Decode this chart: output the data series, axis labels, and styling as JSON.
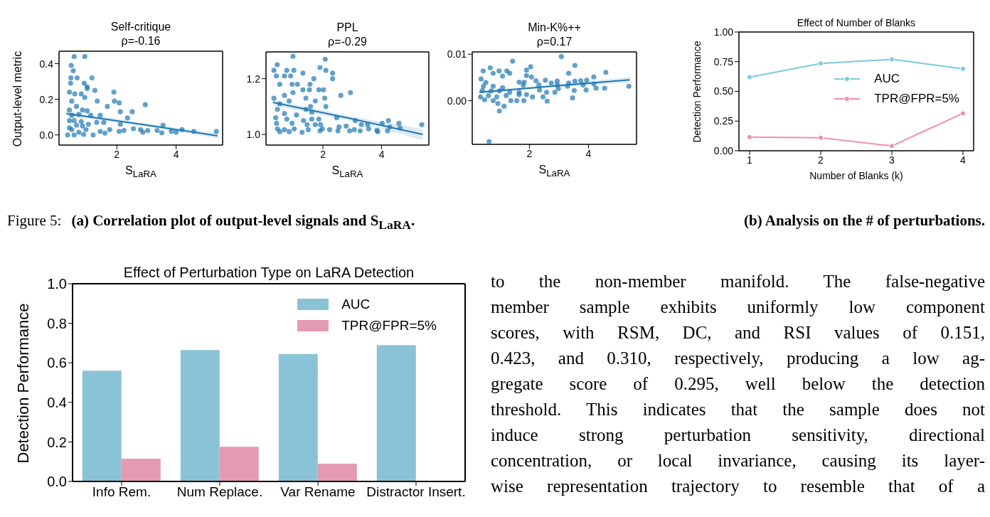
{
  "chart_data": [
    {
      "type": "scatter",
      "title": "Self-critique",
      "subtitle": "ρ=-0.16",
      "xlabel": "S$_{LaRA}$",
      "ylabel": "Output-level metric",
      "xlim": [
        0.05,
        5.57
      ],
      "xticks": [
        2,
        4
      ],
      "ylim": [
        -0.057,
        0.47
      ],
      "yticks": [
        {
          "value": 0,
          "label": "0.0"
        },
        {
          "value": 0.2,
          "label": "0.2"
        },
        {
          "value": 0.4,
          "label": "0.4"
        }
      ],
      "series": [
        {
          "type": "scatter",
          "marker": "circle",
          "color": "#1f77b4",
          "x": [
            0.56,
            0.92,
            0.46,
            0.53,
            0.45,
            0.66,
            1.16,
            0.44,
            0.9,
            1.0,
            0.4,
            1.26,
            1.0,
            1.9,
            0.58,
            0.8,
            0.92,
            1.92,
            2.96,
            1.34,
            2.08,
            1.68,
            0.48,
            0.64,
            0.4,
            0.84,
            1.0,
            2.12,
            2.52,
            0.48,
            0.72,
            1.12,
            1.44,
            2.36,
            0.4,
            0.8,
            1.32,
            1.56,
            2.12,
            1.04,
            3.56,
            2.56,
            2.8,
            3.04,
            3.36,
            3.84,
            4.2,
            4.6,
            5.36,
            0.48,
            0.72,
            0.96,
            1.44,
            1.76,
            2.08,
            2.24,
            2.88,
            3.52,
            4.0,
            0.34,
            0.56,
            0.88,
            1.2,
            1.6,
            0.56,
            0.64,
            0.4,
            0.84
          ],
          "values": [
            0.44,
            0.44,
            0.39,
            0.36,
            0.32,
            0.32,
            0.32,
            0.29,
            0.29,
            0.27,
            0.24,
            0.25,
            0.26,
            0.24,
            0.23,
            0.23,
            0.21,
            0.19,
            0.17,
            0.19,
            0.18,
            0.16,
            0.19,
            0.16,
            0.14,
            0.14,
            0.135,
            0.13,
            0.13,
            0.11,
            0.115,
            0.11,
            0.11,
            0.095,
            0.08,
            0.075,
            0.07,
            0.07,
            0.06,
            0.06,
            0.055,
            0.035,
            0.03,
            0.025,
            0.025,
            0.02,
            0.03,
            0.02,
            0.02,
            0.03,
            0.015,
            0.03,
            0.02,
            0.03,
            0.02,
            0.025,
            0.015,
            0.012,
            0.015,
            0.0,
            0.0,
            0.003,
            0.0,
            0.01,
            0.08,
            0.055,
            0.04,
            0.05
          ]
        },
        {
          "type": "line",
          "color": "#1f77b4",
          "x": [
            0.3,
            2.9,
            5.4
          ],
          "values": [
            0.12,
            0.058,
            -0.005
          ],
          "lower": [
            0.105,
            0.05,
            -0.02
          ],
          "upper": [
            0.135,
            0.066,
            0.01
          ]
        }
      ]
    },
    {
      "type": "scatter",
      "title": "PPL",
      "subtitle": "ρ=-0.29",
      "xlabel": "S$_{LaRA}$",
      "xlim": [
        0.06,
        5.61
      ],
      "xticks": [
        2,
        4
      ],
      "ylim": [
        0.962,
        1.296
      ],
      "yticks": [
        {
          "value": 1,
          "label": "1.0"
        },
        {
          "value": 1.2,
          "label": "1.2"
        }
      ],
      "series": [
        {
          "type": "scatter",
          "marker": "circle",
          "color": "#1f77b4",
          "x": [
            0.98,
            2.08,
            0.44,
            0.33,
            0.77,
            1.01,
            1.32,
            1.9,
            2.1,
            2.33,
            0.41,
            0.69,
            0.9,
            1.69,
            2.33,
            0.53,
            0.95,
            1.13,
            1.56,
            1.86,
            1.32,
            1.54,
            2.02,
            2.61,
            2.94,
            0.33,
            0.69,
            0.98,
            1.42,
            2.06,
            0.53,
            0.85,
            1.74,
            2.1,
            1.58,
            0.45,
            1.42,
            0.69,
            1.1,
            1.62,
            0.39,
            0.77,
            1.34,
            1.62,
            1.86,
            2.47,
            3.1,
            4.23,
            0.42,
            0.95,
            1.46,
            1.74,
            1.92,
            3.31,
            3.52,
            4.02,
            4.59,
            5.37,
            0.45,
            0.69,
            1.02,
            1.5,
            1.98,
            2.55,
            2.79,
            3.07,
            3.56,
            3.84,
            4.28,
            4.63,
            0.53,
            0.85,
            1.29,
            1.9,
            2.23,
            2.51,
            2.91,
            3.27,
            4.2,
            3.87
          ],
          "values": [
            1.28,
            1.27,
            1.25,
            1.23,
            1.23,
            1.23,
            1.22,
            1.24,
            1.23,
            1.22,
            1.21,
            1.21,
            1.21,
            1.2,
            1.2,
            1.18,
            1.18,
            1.18,
            1.18,
            1.16,
            1.16,
            1.16,
            1.16,
            1.14,
            1.15,
            1.13,
            1.14,
            1.15,
            1.13,
            1.13,
            1.11,
            1.12,
            1.12,
            1.1,
            1.1,
            1.09,
            1.09,
            1.075,
            1.07,
            1.08,
            1.06,
            1.055,
            1.05,
            1.055,
            1.055,
            1.06,
            1.05,
            1.05,
            1.04,
            1.04,
            1.035,
            1.035,
            1.035,
            1.035,
            1.035,
            1.04,
            1.04,
            1.035,
            1.02,
            1.017,
            1.02,
            1.017,
            1.02,
            1.027,
            1.03,
            1.017,
            1.02,
            1.015,
            1.027,
            1.023,
            1.01,
            1.01,
            1.008,
            1.013,
            1.017,
            1.013,
            1.013,
            1.013,
            1.013,
            1.01
          ]
        },
        {
          "type": "line",
          "color": "#1f77b4",
          "x": [
            0.3,
            2.9,
            5.4
          ],
          "values": [
            1.115,
            1.058,
            1.0
          ],
          "lower": [
            1.105,
            1.05,
            0.98
          ],
          "upper": [
            1.125,
            1.066,
            1.02
          ]
        }
      ]
    },
    {
      "type": "scatter",
      "title": "Min-K%++",
      "subtitle": "ρ=0.17",
      "xlabel": "S$_{LaRA}$",
      "xlim": [
        0.06,
        5.63
      ],
      "xticks": [
        2,
        4
      ],
      "ylim": [
        -0.0094,
        0.0105
      ],
      "yticks": [
        {
          "value": 0,
          "label": "0.00"
        },
        {
          "value": 0.01,
          "label": "0.01"
        }
      ],
      "series": [
        {
          "type": "scatter",
          "marker": "circle",
          "color": "#1f77b4",
          "x": [
            3.08,
            0.63,
            1.43,
            3.54,
            2.04,
            1.9,
            0.67,
            0.43,
            0.97,
            1.23,
            4.59,
            3.33,
            0.77,
            1.33,
            1.9,
            2.07,
            4.18,
            0.36,
            1.09,
            2.22,
            2.54,
            2.94,
            3.74,
            3.94,
            1.82,
            1.65,
            0.52,
            2.74,
            3.33,
            3.54,
            3.82,
            4.18,
            2.32,
            2.94,
            1.79,
            0.44,
            0.77,
            1.09,
            5.37,
            4.26,
            4.55,
            3.29,
            2.34,
            2.98,
            3.52,
            3.92,
            0.4,
            0.7,
            0.98,
            1.33,
            1.65,
            2.58,
            2.86,
            1.9,
            0.34,
            0.61,
            0.89,
            1.21,
            1.65,
            2.1,
            2.46,
            3.46,
            0.48,
            0.77,
            1.37,
            1.57,
            1.81,
            2.6,
            0.93,
            1.14,
            0.98
          ],
          "values": [
            0.0095,
            -0.0088,
            0.0085,
            0.0076,
            0.0073,
            0.0066,
            0.0071,
            0.0064,
            0.0064,
            0.0064,
            0.0061,
            0.0059,
            0.0059,
            0.0059,
            0.0054,
            0.0051,
            0.0051,
            0.0047,
            0.0053,
            0.0043,
            0.0044,
            0.0042,
            0.0043,
            0.0044,
            0.004,
            0.004,
            0.0039,
            0.0038,
            0.0038,
            0.0042,
            0.0034,
            0.0036,
            0.0034,
            0.0034,
            0.0033,
            0.0031,
            0.0031,
            0.0028,
            0.0031,
            0.0027,
            0.0027,
            0.0031,
            0.0023,
            0.0026,
            0.0022,
            0.0023,
            0.0022,
            0.0021,
            0.0021,
            0.0018,
            0.0018,
            0.0018,
            0.0018,
            0.0013,
            0.0008,
            0.0011,
            0.0008,
            0.0011,
            0.0013,
            0.0008,
            0.0008,
            0.0006,
            0.0002,
            0.0,
            0.0,
            0.0,
            0.0,
            -0.0001,
            -0.0006,
            -0.0012,
            -0.0022
          ]
        },
        {
          "type": "line",
          "color": "#1f77b4",
          "x": [
            0.3,
            2.9,
            5.4
          ],
          "values": [
            0.0018,
            0.0032,
            0.0045
          ],
          "lower": [
            0.0015,
            0.0029,
            0.0039
          ],
          "upper": [
            0.0021,
            0.0035,
            0.0051
          ]
        }
      ]
    },
    {
      "type": "line",
      "title": "Effect of Number of Blanks",
      "xlabel": "Number of Blanks (k)",
      "ylabel": "Detection Performance",
      "marker": "circle",
      "legend": "right",
      "x": [
        1,
        2,
        3,
        4
      ],
      "xlim": [
        0.85,
        4.15
      ],
      "xticks": [
        1,
        2,
        3,
        4
      ],
      "ylim": [
        0,
        1
      ],
      "yticks": [
        {
          "value": 0,
          "label": "0.00"
        },
        {
          "value": 0.25,
          "label": "0.25"
        },
        {
          "value": 0.5,
          "label": "0.50"
        },
        {
          "value": 0.75,
          "label": "0.75"
        },
        {
          "value": 1,
          "label": "1.00"
        }
      ],
      "series": [
        {
          "name": "AUC",
          "color": "#7ec8e3",
          "values": [
            0.62,
            0.735,
            0.77,
            0.69
          ]
        },
        {
          "name": "TPR@FPR=5%",
          "color": "#f28cb1",
          "values": [
            0.115,
            0.11,
            0.04,
            0.315
          ]
        }
      ]
    },
    {
      "type": "bar",
      "title": "Effect of Perturbation Type on LaRA Detection",
      "ylabel": "Detection Performance",
      "legend": "top right",
      "categories": [
        "Info Rem.",
        "Num Replace.",
        "Var Rename",
        "Distractor Insert."
      ],
      "ylim": [
        0,
        1
      ],
      "yticks": [
        {
          "value": 0,
          "label": "0.0"
        },
        {
          "value": 0.2,
          "label": "0.2"
        },
        {
          "value": 0.4,
          "label": "0.4"
        },
        {
          "value": 0.6,
          "label": "0.6"
        },
        {
          "value": 0.8,
          "label": "0.8"
        },
        {
          "value": 1,
          "label": "1.0"
        }
      ],
      "series": [
        {
          "name": "AUC",
          "color": "#8bc3d6",
          "values": [
            0.56,
            0.665,
            0.645,
            0.69
          ]
        },
        {
          "name": "TPR@FPR=5%",
          "color": "#e59ab3",
          "values": [
            0.115,
            0.175,
            0.09,
            null
          ]
        }
      ]
    },
    {
      "type": "other",
      "annotations": [
        "Figure 5:",
        "(a) Correlation plot of output-level signals and S$_{LaRA}$.",
        "(b) Analysis on the # of perturbations."
      ]
    },
    {
      "type": "other",
      "annotations": [
        "to the non-member manifold. The false-negative",
        "member sample exhibits uniformly low component",
        "scores, with RSM, DC, and RSI values of 0.151,",
        "0.423, and 0.310, respectively, producing a low ag-",
        "gregate score of 0.295, well below the detection",
        "threshold. This indicates that the sample does not",
        "induce strong perturbation sensitivity, directional",
        "concentration, or local invariance, causing its layer-",
        "wise representation trajectory to resemble that of a"
      ]
    }
  ]
}
